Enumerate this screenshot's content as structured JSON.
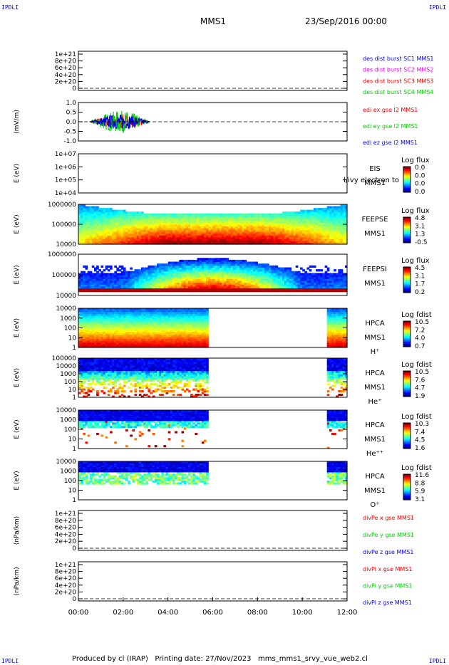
{
  "corners": {
    "tl": "IPDLI",
    "tr": "IPDLI",
    "bl": "IPDLI",
    "br": "IPDLI"
  },
  "header": {
    "spacecraft": "MMS1",
    "datetime": "23/Sep/2016 00:00"
  },
  "footer": "Produced by cl (IRAP)   Printing date: 27/Nov/2023   mms_mms1_srvy_vue_web2.cl",
  "colors": {
    "blue": "#0000e6",
    "magenta": "#e600e6",
    "red": "#e60000",
    "green": "#00cc00"
  },
  "chart_data": [
    {
      "type": "line",
      "id": "dist",
      "ylabel": "",
      "yticks": [
        "1e+21",
        "8e+20",
        "6e+20",
        "4e+20",
        "2e+20",
        "0"
      ],
      "legend": [
        {
          "text": "des dist burst SC1 MMS1",
          "color": "blue"
        },
        {
          "text": "des dist burst SC2 MMS2",
          "color": "magenta"
        },
        {
          "text": "des dist burst SC3 MMS3",
          "color": "red"
        },
        {
          "text": "des dist burst SC4 MMS4",
          "color": "green"
        }
      ]
    },
    {
      "type": "line",
      "id": "edi",
      "ylabel": "(mV/m)",
      "yticks": [
        "1.0",
        "0.5",
        "0.0",
        "-0.5",
        "-1.0"
      ],
      "legend": [
        {
          "text": "edi ex gse l2 MMS1",
          "color": "red"
        },
        {
          "text": "edi ey gse l2 MMS1",
          "color": "green"
        },
        {
          "text": "edi ez gse l2 MMS1",
          "color": "blue"
        }
      ],
      "active_range_hours": [
        0.5,
        3.2
      ]
    },
    {
      "type": "heatmap",
      "id": "eis",
      "ylabel": "E (eV)",
      "yticks": [
        "1e+07",
        "1e+06",
        "1e+05",
        "1e+04"
      ],
      "side": [
        "EIS",
        "MMS1"
      ],
      "overlay": "l/ivy electron to",
      "cbar_title": "Log flux",
      "cbar_ticks": [
        "0.0",
        "0.0",
        "0.0",
        "0.0"
      ]
    },
    {
      "type": "heatmap",
      "id": "feepse",
      "ylabel": "E (eV)",
      "yticks": [
        "1000000",
        "100000",
        "10000"
      ],
      "side": [
        "FEEPSE",
        "MMS1"
      ],
      "cbar_title": "Log flux",
      "cbar_ticks": [
        "4.8",
        "3.1",
        "1.3",
        "-0.5"
      ]
    },
    {
      "type": "heatmap",
      "id": "feepsi",
      "ylabel": "E (eV)",
      "yticks": [
        "1000000",
        "100000",
        "10000"
      ],
      "side": [
        "FEEPSI",
        "MMS1"
      ],
      "cbar_title": "Log flux",
      "cbar_ticks": [
        "4.5",
        "3.1",
        "1.7",
        "0.2"
      ]
    },
    {
      "type": "heatmap",
      "id": "hpca_h",
      "ylabel": "E (eV)",
      "yticks": [
        "10000",
        "1000",
        "100",
        "10",
        "1"
      ],
      "side": [
        "HPCA",
        "MMS1",
        "H⁺"
      ],
      "cbar_title": "Log fdist",
      "cbar_ticks": [
        "10.5",
        "7.2",
        "4.0",
        "0.7"
      ],
      "data_ranges_hours": [
        [
          0,
          5.8
        ],
        [
          11.05,
          12
        ]
      ]
    },
    {
      "type": "heatmap",
      "id": "hpca_he",
      "ylabel": "E (eV)",
      "yticks": [
        "100000",
        "10000",
        "1000",
        "100",
        "10",
        "1"
      ],
      "side": [
        "HPCA",
        "MMS1",
        "He⁺"
      ],
      "cbar_title": "Log fdist",
      "cbar_ticks": [
        "10.5",
        "7.6",
        "4.7",
        "1.9"
      ],
      "data_ranges_hours": [
        [
          0,
          5.8
        ],
        [
          11.05,
          12
        ]
      ]
    },
    {
      "type": "heatmap",
      "id": "hpca_hepp",
      "ylabel": "E (eV)",
      "yticks": [
        "10000",
        "1000",
        "100",
        "10",
        "1"
      ],
      "side": [
        "HPCA",
        "MMS1",
        "He⁺⁺"
      ],
      "cbar_title": "Log fdist",
      "cbar_ticks": [
        "10.3",
        "7.4",
        "4.5",
        "1.6"
      ],
      "data_ranges_hours": [
        [
          0,
          5.8
        ],
        [
          11.05,
          12
        ]
      ]
    },
    {
      "type": "heatmap",
      "id": "hpca_o",
      "ylabel": "E (eV)",
      "yticks": [
        "10000",
        "1000",
        "100",
        "10",
        "1"
      ],
      "side": [
        "HPCA",
        "MMS1",
        "O⁺"
      ],
      "cbar_title": "Log fdist",
      "cbar_ticks": [
        "11.6",
        "8.8",
        "5.9",
        "3.1"
      ],
      "data_ranges_hours": [
        [
          0,
          5.8
        ],
        [
          11.05,
          12
        ]
      ]
    },
    {
      "type": "line",
      "id": "divpe",
      "ylabel": "(nPa/km)",
      "yticks": [
        "1e+21",
        "8e+20",
        "6e+20",
        "4e+20",
        "2e+20",
        "0"
      ],
      "legend": [
        {
          "text": "divPe x gse MMS1",
          "color": "red"
        },
        {
          "text": "divPe y gse MMS1",
          "color": "green"
        },
        {
          "text": "divPe z gse MMS1",
          "color": "blue"
        }
      ]
    },
    {
      "type": "line",
      "id": "divpi",
      "ylabel": "(nPa/km)",
      "yticks": [
        "1e+21",
        "8e+20",
        "6e+20",
        "4e+20",
        "2e+20",
        "0"
      ],
      "legend": [
        {
          "text": "divPi x gse MMS1",
          "color": "red"
        },
        {
          "text": "divPi y gse MMS1",
          "color": "green"
        },
        {
          "text": "divPi z gse MMS1",
          "color": "blue"
        }
      ]
    }
  ],
  "xaxis": {
    "ticks": [
      "00:00",
      "02:00",
      "04:00",
      "06:00",
      "08:00",
      "10:00",
      "12:00"
    ],
    "range_hours": [
      0,
      12
    ]
  }
}
